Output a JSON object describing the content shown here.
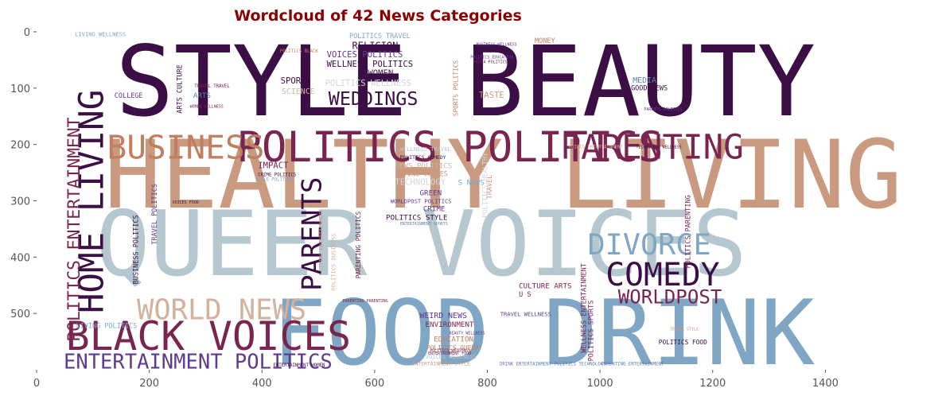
{
  "chart_data": {
    "type": "wordcloud",
    "title": "Wordcloud of 42 News Categories",
    "xlabel": "",
    "ylabel": "",
    "xlim": [
      0,
      1600
    ],
    "ylim": [
      600,
      0
    ],
    "x_ticks": [
      0,
      200,
      400,
      600,
      800,
      1000,
      1200,
      1400
    ],
    "y_ticks": [
      0,
      100,
      200,
      300,
      400,
      500
    ],
    "grid": false,
    "palette": [
      "#3b0f45",
      "#7a2550",
      "#c99a80",
      "#b6c8cf",
      "#7fa6c4",
      "#5f3a8e",
      "#d2b29c"
    ],
    "words": [
      {
        "text": "STYLE BEAUTY",
        "x": 140,
        "y": 148,
        "size": 172,
        "color": "#3b0f45",
        "rotate": false
      },
      {
        "text": "HEALTHY LIVING",
        "x": 120,
        "y": 312,
        "size": 168,
        "color": "#c99a80",
        "rotate": false
      },
      {
        "text": "QUEER VOICES",
        "x": 105,
        "y": 432,
        "size": 160,
        "color": "#b6c8cf",
        "rotate": false
      },
      {
        "text": "FOOD DRINK",
        "x": 418,
        "y": 590,
        "size": 160,
        "color": "#7fa6c4",
        "rotate": false
      },
      {
        "text": "POLITICS POLITICS",
        "x": 355,
        "y": 230,
        "size": 74,
        "color": "#7a2550",
        "rotate": false
      },
      {
        "text": "BUSINESS",
        "x": 125,
        "y": 225,
        "size": 58,
        "color": "#c08060",
        "rotate": false
      },
      {
        "text": "PARENTING",
        "x": 930,
        "y": 225,
        "size": 60,
        "color": "#7a2550",
        "rotate": false
      },
      {
        "text": "BLACK VOICES",
        "x": 52,
        "y": 565,
        "size": 70,
        "color": "#7a2550",
        "rotate": false
      },
      {
        "text": "ENTERTAINMENT POLITICS",
        "x": 48,
        "y": 598,
        "size": 36,
        "color": "#5f3a8e",
        "rotate": false
      },
      {
        "text": "WORLD NEWS",
        "x": 178,
        "y": 510,
        "size": 50,
        "color": "#d2b29c",
        "rotate": false
      },
      {
        "text": "DIVORCE",
        "x": 978,
        "y": 395,
        "size": 52,
        "color": "#7fa6c4",
        "rotate": false
      },
      {
        "text": "COMEDY",
        "x": 1010,
        "y": 450,
        "size": 56,
        "color": "#3b0f45",
        "rotate": false
      },
      {
        "text": "WORLDPOST",
        "x": 1032,
        "y": 482,
        "size": 34,
        "color": "#7a2550",
        "rotate": false
      },
      {
        "text": "WEDDINGS",
        "x": 518,
        "y": 130,
        "size": 33,
        "color": "#3b0f45",
        "rotate": false
      },
      {
        "text": "HOME LIVING",
        "x": 118,
        "y": 500,
        "size": 60,
        "color": "#3b0f45",
        "rotate": true
      },
      {
        "text": "POLITICS ENTERTAINMENT",
        "x": 76,
        "y": 550,
        "size": 30,
        "color": "#7a2550",
        "rotate": true
      },
      {
        "text": "PARENTS",
        "x": 505,
        "y": 460,
        "size": 48,
        "color": "#3b0f45",
        "rotate": true
      },
      {
        "text": "RELIGION",
        "x": 560,
        "y": 30,
        "size": 17,
        "color": "#3b0f45",
        "rotate": false
      },
      {
        "text": "POLITICS TRAVEL",
        "x": 555,
        "y": 11,
        "size": 12,
        "color": "#7fa6c4",
        "rotate": false
      },
      {
        "text": "VOICES POLITICS",
        "x": 515,
        "y": 45,
        "size": 15,
        "color": "#5f3a8e",
        "rotate": false
      },
      {
        "text": "WELLNESS POLITICS",
        "x": 515,
        "y": 62,
        "size": 15,
        "color": "#3b0f45",
        "rotate": false
      },
      {
        "text": "WOMEN",
        "x": 588,
        "y": 78,
        "size": 15,
        "color": "#3b0f45",
        "rotate": false
      },
      {
        "text": "SPORTS",
        "x": 433,
        "y": 92,
        "size": 15,
        "color": "#3b0f45",
        "rotate": false
      },
      {
        "text": "POLITICS WELLNESS",
        "x": 512,
        "y": 96,
        "size": 15,
        "color": "#d0d8dc",
        "rotate": false
      },
      {
        "text": "SCIENCE",
        "x": 435,
        "y": 110,
        "size": 14,
        "color": "#d2b29c",
        "rotate": false
      },
      {
        "text": "MEDIA",
        "x": 1058,
        "y": 90,
        "size": 14,
        "color": "#5f7fb0",
        "rotate": false
      },
      {
        "text": "GOOD NEWS",
        "x": 1055,
        "y": 104,
        "size": 12,
        "color": "#3b0f45",
        "rotate": false
      },
      {
        "text": "TASTE",
        "x": 785,
        "y": 117,
        "size": 15,
        "color": "#c99a80",
        "rotate": false
      },
      {
        "text": "MONEY",
        "x": 884,
        "y": 20,
        "size": 12,
        "color": "#c08060",
        "rotate": false
      },
      {
        "text": "COLLEGE",
        "x": 138,
        "y": 117,
        "size": 12,
        "color": "#5f3a8e",
        "rotate": false
      },
      {
        "text": "ARTS",
        "x": 278,
        "y": 117,
        "size": 13,
        "color": "#5f7fb0",
        "rotate": false
      },
      {
        "text": "ARTS CULTURE",
        "x": 258,
        "y": 145,
        "size": 12,
        "color": "#3b0f45",
        "rotate": true
      },
      {
        "text": "IMPACT",
        "x": 393,
        "y": 242,
        "size": 15,
        "color": "#7a2550",
        "rotate": false
      },
      {
        "text": "NEWS POLITICS",
        "x": 636,
        "y": 242,
        "size": 13,
        "color": "#d2b29c",
        "rotate": false
      },
      {
        "text": "LATINO VOICES",
        "x": 636,
        "y": 256,
        "size": 12,
        "color": "#c99a80",
        "rotate": false
      },
      {
        "text": "TECHNOLOGY",
        "x": 636,
        "y": 272,
        "size": 15,
        "color": "#d0d8dc",
        "rotate": false
      },
      {
        "text": "GREEN",
        "x": 680,
        "y": 290,
        "size": 13,
        "color": "#5f3a8e",
        "rotate": false
      },
      {
        "text": "WORLDPOST POLITICS",
        "x": 628,
        "y": 304,
        "size": 10,
        "color": "#5f3a8e",
        "rotate": false
      },
      {
        "text": "CRIME",
        "x": 686,
        "y": 318,
        "size": 13,
        "color": "#5f3a8e",
        "rotate": false
      },
      {
        "text": "POLITICS STYLE",
        "x": 620,
        "y": 334,
        "size": 13,
        "color": "#3b0f45",
        "rotate": false
      },
      {
        "text": "S NEWS",
        "x": 748,
        "y": 272,
        "size": 13,
        "color": "#7fa6c4",
        "rotate": false
      },
      {
        "text": "CULTURE ARTS",
        "x": 856,
        "y": 455,
        "size": 13,
        "color": "#7a2550",
        "rotate": false
      },
      {
        "text": "U S",
        "x": 856,
        "y": 470,
        "size": 12,
        "color": "#7a2550",
        "rotate": false
      },
      {
        "text": "WEIRD NEWS",
        "x": 680,
        "y": 508,
        "size": 14,
        "color": "#5f3a8e",
        "rotate": false
      },
      {
        "text": "ENVIRONMENT",
        "x": 690,
        "y": 524,
        "size": 13,
        "color": "#7a2550",
        "rotate": false
      },
      {
        "text": "EDUCATION",
        "x": 705,
        "y": 550,
        "size": 13,
        "color": "#c08060",
        "rotate": false
      },
      {
        "text": "POLITICS QUEER",
        "x": 692,
        "y": 565,
        "size": 11,
        "color": "#c08060",
        "rotate": false
      },
      {
        "text": "POLITICS FOOD",
        "x": 1104,
        "y": 555,
        "size": 11,
        "color": "#3b0f45",
        "rotate": false
      },
      {
        "text": "LIVING POLITICS",
        "x": 70,
        "y": 526,
        "size": 12,
        "color": "#7fa6c4",
        "rotate": false
      },
      {
        "text": "LIVING WELLNESS",
        "x": 68,
        "y": 8,
        "size": 10,
        "color": "#7fa6c4",
        "rotate": false
      },
      {
        "text": "TRAVEL POLITICS",
        "x": 213,
        "y": 378,
        "size": 12,
        "color": "#5f3a8e",
        "rotate": true
      },
      {
        "text": "BUSINESS POLITICS",
        "x": 180,
        "y": 448,
        "size": 12,
        "color": "#3b0f45",
        "rotate": true
      },
      {
        "text": "WELLNESS ENTERTAINMENT",
        "x": 975,
        "y": 570,
        "size": 12,
        "color": "#7a2550",
        "rotate": true
      },
      {
        "text": "POLITICS PARENTING",
        "x": 1160,
        "y": 420,
        "size": 12,
        "color": "#7a2550",
        "rotate": true
      },
      {
        "text": "POLITICS SPORTS",
        "x": 988,
        "y": 585,
        "size": 12,
        "color": "#7a2550",
        "rotate": true
      },
      {
        "text": "SPORTS POLITICS",
        "x": 748,
        "y": 150,
        "size": 11,
        "color": "#c08060",
        "rotate": true
      },
      {
        "text": "TRAVEL",
        "x": 808,
        "y": 297,
        "size": 12,
        "color": "#c99a80",
        "rotate": true
      },
      {
        "text": "POLITICS HEALTHY",
        "x": 800,
        "y": 330,
        "size": 12,
        "color": "#d0d8dc",
        "rotate": true
      },
      {
        "text": "PARENTING POLITICS",
        "x": 575,
        "y": 438,
        "size": 11,
        "color": "#7a2550",
        "rotate": true
      },
      {
        "text": "ENTERTAINMENT STYLE",
        "x": 666,
        "y": 592,
        "size": 9,
        "color": "#c99a80",
        "rotate": false
      },
      {
        "text": "VOICES WELLNESS",
        "x": 690,
        "y": 580,
        "size": 10,
        "color": "#b6c8cf",
        "rotate": false
      },
      {
        "text": "TRAVEL WELLNESS",
        "x": 823,
        "y": 505,
        "size": 10,
        "color": "#5f3a8e",
        "rotate": false
      },
      {
        "text": "WELLNESS TRAVEL",
        "x": 645,
        "y": 212,
        "size": 10,
        "color": "#b6c8cf",
        "rotate": false
      },
      {
        "text": "POLITICS COMEDY",
        "x": 645,
        "y": 226,
        "size": 9,
        "color": "#3b0f45",
        "rotate": false
      },
      {
        "text": "DRINK ENTERTAINMENT POLITICS TECHNOLOGY",
        "x": 822,
        "y": 592,
        "size": 8,
        "color": "#5f7fb0",
        "rotate": false
      },
      {
        "text": "PARENTING ENTERTAINMENT",
        "x": 1002,
        "y": 592,
        "size": 8,
        "color": "#5f7fb0",
        "rotate": false
      },
      {
        "text": "ENTERTAINMENT WOMEN",
        "x": 420,
        "y": 594,
        "size": 8,
        "color": "#3b0f45",
        "rotate": false
      },
      {
        "text": "POLITICS BLACK",
        "x": 432,
        "y": 37,
        "size": 8,
        "color": "#c08060",
        "rotate": false
      },
      {
        "text": "TRAVEL TRAVEL",
        "x": 280,
        "y": 99,
        "size": 8,
        "color": "#7a2550",
        "rotate": false
      },
      {
        "text": "WOMEN WELLNESS",
        "x": 272,
        "y": 135,
        "size": 7,
        "color": "#7a2550",
        "rotate": false
      },
      {
        "text": "VOICES FOOD",
        "x": 241,
        "y": 305,
        "size": 7,
        "color": "#3b0f45",
        "rotate": false
      },
      {
        "text": "STYLE POLITICS",
        "x": 388,
        "y": 265,
        "size": 8,
        "color": "#7fa6c4",
        "rotate": false
      },
      {
        "text": "CRIME POLITICS",
        "x": 393,
        "y": 256,
        "size": 8,
        "color": "#3b0f45",
        "rotate": false
      },
      {
        "text": "BUSINESS WELLNESS",
        "x": 780,
        "y": 25,
        "size": 7,
        "color": "#5f3a8e",
        "rotate": false
      },
      {
        "text": "POLITICS EDUCATION",
        "x": 770,
        "y": 47,
        "size": 7,
        "color": "#5f3a8e",
        "rotate": false
      },
      {
        "text": "MEDIA POLITICS",
        "x": 776,
        "y": 56,
        "size": 7,
        "color": "#7a2550",
        "rotate": false
      },
      {
        "text": "TECHNOLOGY WELLNESS",
        "x": 1064,
        "y": 207,
        "size": 7,
        "color": "#3b0f45",
        "rotate": false
      },
      {
        "text": "PARENTS POLITICS",
        "x": 1078,
        "y": 140,
        "size": 7,
        "color": "#5f3a8e",
        "rotate": false
      },
      {
        "text": "PARENTING PARENTING",
        "x": 543,
        "y": 480,
        "size": 7,
        "color": "#7a2550",
        "rotate": false
      },
      {
        "text": "BEAUTY WELLNESS",
        "x": 732,
        "y": 537,
        "size": 7,
        "color": "#5f3a8e",
        "rotate": false
      },
      {
        "text": "ENTERTAINMENT FOOD",
        "x": 695,
        "y": 573,
        "size": 7,
        "color": "#7a2550",
        "rotate": false
      },
      {
        "text": "POLITICS WEDDINGS",
        "x": 698,
        "y": 568,
        "size": 7,
        "color": "#7a2550",
        "rotate": false
      },
      {
        "text": "ENTERTAINMENT SPORTS",
        "x": 645,
        "y": 343,
        "size": 7,
        "color": "#5f7fb0",
        "rotate": false
      },
      {
        "text": "LIVING ENTERTAINMENT",
        "x": 508,
        "y": 425,
        "size": 9,
        "color": "#c99a80",
        "rotate": true
      },
      {
        "text": "POLITICS BUSINESS",
        "x": 530,
        "y": 460,
        "size": 10,
        "color": "#d2b29c",
        "rotate": true
      },
      {
        "text": "VOICES ENTERTAINMENT",
        "x": 944,
        "y": 207,
        "size": 8,
        "color": "#d2b29c",
        "rotate": false
      },
      {
        "text": "TRAVEL STYLE",
        "x": 1124,
        "y": 530,
        "size": 7,
        "color": "#c99a80",
        "rotate": false
      }
    ]
  }
}
